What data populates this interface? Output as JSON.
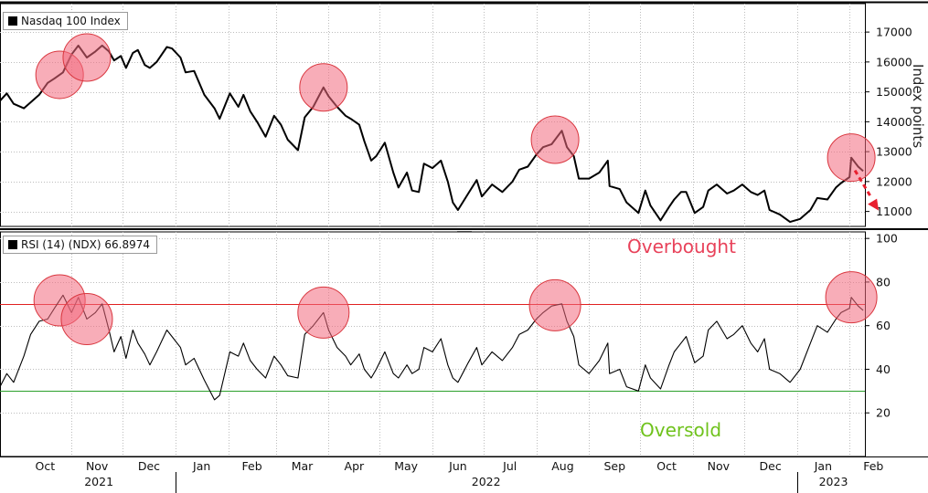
{
  "colors": {
    "price_line": "#000000",
    "rsi_line": "#000000",
    "overbought_line": "#e02020",
    "oversold_line": "#2ca02c",
    "overbought_text": "#e8425a",
    "oversold_text": "#6fc21c",
    "highlight_fill": "#f26a7e",
    "highlight_stroke": "#d9363e",
    "arrow": "#e8202f",
    "axis": "#000000"
  },
  "top_panel": {
    "legend": "Nasdaq 100 Index",
    "ylabel": "Index points"
  },
  "bottom_panel": {
    "legend": "RSI (14) (NDX) 66.8974",
    "overbought_label": "Overbought",
    "oversold_label": "Oversold"
  },
  "chart_data": [
    {
      "type": "line",
      "title": "Nasdaq 100 Index",
      "ylabel": "Index points",
      "ylim": [
        10500,
        17950
      ],
      "yticks": [
        11000,
        12000,
        13000,
        14000,
        15000,
        16000,
        17000
      ],
      "x_tick_labels": [
        "Oct",
        "Nov",
        "Dec",
        "Jan",
        "Feb",
        "Mar",
        "Apr",
        "May",
        "Jun",
        "Jul",
        "Aug",
        "Sep",
        "Oct",
        "Nov",
        "Dec",
        "Jan",
        "Feb"
      ],
      "x_year_labels": [
        "2021",
        "2022",
        "2023"
      ],
      "x_range": [
        "2021-09-20",
        "2023-02-10"
      ],
      "series": [
        {
          "values": [
            [
              "2021-09-20",
              14700
            ],
            [
              "2021-09-24",
              14950
            ],
            [
              "2021-09-28",
              14600
            ],
            [
              "2021-10-04",
              14450
            ],
            [
              "2021-10-08",
              14650
            ],
            [
              "2021-10-13",
              14900
            ],
            [
              "2021-10-18",
              15300
            ],
            [
              "2021-10-22",
              15450
            ],
            [
              "2021-10-27",
              15650
            ],
            [
              "2021-11-01",
              16250
            ],
            [
              "2021-11-05",
              16550
            ],
            [
              "2021-11-10",
              16150
            ],
            [
              "2021-11-15",
              16350
            ],
            [
              "2021-11-19",
              16550
            ],
            [
              "2021-11-23",
              16350
            ],
            [
              "2021-11-26",
              16050
            ],
            [
              "2021-11-30",
              16200
            ],
            [
              "2021-12-03",
              15800
            ],
            [
              "2021-12-07",
              16300
            ],
            [
              "2021-12-10",
              16400
            ],
            [
              "2021-12-14",
              15900
            ],
            [
              "2021-12-17",
              15800
            ],
            [
              "2021-12-21",
              16000
            ],
            [
              "2021-12-27",
              16500
            ],
            [
              "2021-12-30",
              16450
            ],
            [
              "2022-01-04",
              16150
            ],
            [
              "2022-01-07",
              15650
            ],
            [
              "2022-01-12",
              15700
            ],
            [
              "2022-01-18",
              14900
            ],
            [
              "2022-01-24",
              14450
            ],
            [
              "2022-01-27",
              14100
            ],
            [
              "2022-02-02",
              14950
            ],
            [
              "2022-02-07",
              14500
            ],
            [
              "2022-02-10",
              14900
            ],
            [
              "2022-02-14",
              14350
            ],
            [
              "2022-02-18",
              14000
            ],
            [
              "2022-02-23",
              13500
            ],
            [
              "2022-02-28",
              14200
            ],
            [
              "2022-03-04",
              13900
            ],
            [
              "2022-03-08",
              13400
            ],
            [
              "2022-03-14",
              13050
            ],
            [
              "2022-03-18",
              14150
            ],
            [
              "2022-03-23",
              14500
            ],
            [
              "2022-03-29",
              15150
            ],
            [
              "2022-04-01",
              14850
            ],
            [
              "2022-04-06",
              14500
            ],
            [
              "2022-04-11",
              14200
            ],
            [
              "2022-04-14",
              14100
            ],
            [
              "2022-04-19",
              13900
            ],
            [
              "2022-04-22",
              13350
            ],
            [
              "2022-04-26",
              12700
            ],
            [
              "2022-04-29",
              12850
            ],
            [
              "2022-05-04",
              13300
            ],
            [
              "2022-05-09",
              12300
            ],
            [
              "2022-05-12",
              11800
            ],
            [
              "2022-05-17",
              12300
            ],
            [
              "2022-05-20",
              11700
            ],
            [
              "2022-05-24",
              11650
            ],
            [
              "2022-05-27",
              12600
            ],
            [
              "2022-06-01",
              12450
            ],
            [
              "2022-06-06",
              12700
            ],
            [
              "2022-06-10",
              12000
            ],
            [
              "2022-06-13",
              11300
            ],
            [
              "2022-06-16",
              11050
            ],
            [
              "2022-06-22",
              11600
            ],
            [
              "2022-06-27",
              12050
            ],
            [
              "2022-06-30",
              11500
            ],
            [
              "2022-07-06",
              11900
            ],
            [
              "2022-07-12",
              11650
            ],
            [
              "2022-07-18",
              12000
            ],
            [
              "2022-07-22",
              12400
            ],
            [
              "2022-07-27",
              12500
            ],
            [
              "2022-08-01",
              12900
            ],
            [
              "2022-08-05",
              13150
            ],
            [
              "2022-08-10",
              13250
            ],
            [
              "2022-08-16",
              13700
            ],
            [
              "2022-08-19",
              13150
            ],
            [
              "2022-08-23",
              12850
            ],
            [
              "2022-08-26",
              12100
            ],
            [
              "2022-09-01",
              12100
            ],
            [
              "2022-09-07",
              12300
            ],
            [
              "2022-09-12",
              12700
            ],
            [
              "2022-09-13",
              11850
            ],
            [
              "2022-09-19",
              11750
            ],
            [
              "2022-09-23",
              11300
            ],
            [
              "2022-09-30",
              10950
            ],
            [
              "2022-10-04",
              11700
            ],
            [
              "2022-10-07",
              11200
            ],
            [
              "2022-10-13",
              10700
            ],
            [
              "2022-10-18",
              11150
            ],
            [
              "2022-10-21",
              11400
            ],
            [
              "2022-10-25",
              11650
            ],
            [
              "2022-10-28",
              11650
            ],
            [
              "2022-11-02",
              10950
            ],
            [
              "2022-11-07",
              11150
            ],
            [
              "2022-11-10",
              11700
            ],
            [
              "2022-11-15",
              11900
            ],
            [
              "2022-11-21",
              11600
            ],
            [
              "2022-11-25",
              11700
            ],
            [
              "2022-11-30",
              11900
            ],
            [
              "2022-12-05",
              11650
            ],
            [
              "2022-12-09",
              11550
            ],
            [
              "2022-12-13",
              11700
            ],
            [
              "2022-12-16",
              11050
            ],
            [
              "2022-12-22",
              10900
            ],
            [
              "2022-12-28",
              10650
            ],
            [
              "2023-01-03",
              10750
            ],
            [
              "2023-01-09",
              11050
            ],
            [
              "2023-01-13",
              11450
            ],
            [
              "2023-01-19",
              11400
            ],
            [
              "2023-01-24",
              11800
            ],
            [
              "2023-01-27",
              11950
            ],
            [
              "2023-02-01",
              12150
            ],
            [
              "2023-02-02",
              12800
            ],
            [
              "2023-02-06",
              12500
            ],
            [
              "2023-02-09",
              12350
            ]
          ]
        }
      ],
      "highlights": [
        "2021-10-25",
        "2021-11-10",
        "2022-03-29",
        "2022-08-12",
        "2023-02-02"
      ]
    },
    {
      "type": "line",
      "title": "RSI (14) (NDX) 66.8974",
      "ylim": [
        0,
        103
      ],
      "yticks": [
        20,
        40,
        60,
        80,
        100
      ],
      "reference_lines": [
        {
          "label": "Overbought",
          "value": 70
        },
        {
          "label": "Oversold",
          "value": 30
        }
      ],
      "series": [
        {
          "values": [
            [
              "2021-09-20",
              32
            ],
            [
              "2021-09-24",
              38
            ],
            [
              "2021-09-28",
              34
            ],
            [
              "2021-10-04",
              46
            ],
            [
              "2021-10-08",
              56
            ],
            [
              "2021-10-13",
              62
            ],
            [
              "2021-10-18",
              63
            ],
            [
              "2021-10-22",
              68
            ],
            [
              "2021-10-27",
              74
            ],
            [
              "2021-11-01",
              66
            ],
            [
              "2021-11-05",
              73
            ],
            [
              "2021-11-10",
              63
            ],
            [
              "2021-11-15",
              66
            ],
            [
              "2021-11-19",
              70
            ],
            [
              "2021-11-23",
              58
            ],
            [
              "2021-11-26",
              48
            ],
            [
              "2021-11-30",
              55
            ],
            [
              "2021-12-03",
              45
            ],
            [
              "2021-12-07",
              58
            ],
            [
              "2021-12-10",
              52
            ],
            [
              "2021-12-14",
              47
            ],
            [
              "2021-12-17",
              42
            ],
            [
              "2021-12-21",
              48
            ],
            [
              "2021-12-27",
              58
            ],
            [
              "2021-12-30",
              55
            ],
            [
              "2022-01-04",
              50
            ],
            [
              "2022-01-07",
              42
            ],
            [
              "2022-01-12",
              45
            ],
            [
              "2022-01-18",
              35
            ],
            [
              "2022-01-24",
              26
            ],
            [
              "2022-01-27",
              28
            ],
            [
              "2022-02-02",
              48
            ],
            [
              "2022-02-07",
              46
            ],
            [
              "2022-02-10",
              52
            ],
            [
              "2022-02-14",
              44
            ],
            [
              "2022-02-18",
              40
            ],
            [
              "2022-02-23",
              36
            ],
            [
              "2022-02-28",
              46
            ],
            [
              "2022-03-04",
              42
            ],
            [
              "2022-03-08",
              37
            ],
            [
              "2022-03-14",
              36
            ],
            [
              "2022-03-18",
              56
            ],
            [
              "2022-03-23",
              60
            ],
            [
              "2022-03-29",
              66
            ],
            [
              "2022-04-01",
              58
            ],
            [
              "2022-04-06",
              50
            ],
            [
              "2022-04-11",
              46
            ],
            [
              "2022-04-14",
              42
            ],
            [
              "2022-04-19",
              47
            ],
            [
              "2022-04-22",
              40
            ],
            [
              "2022-04-26",
              36
            ],
            [
              "2022-04-29",
              40
            ],
            [
              "2022-05-04",
              48
            ],
            [
              "2022-05-09",
              38
            ],
            [
              "2022-05-12",
              36
            ],
            [
              "2022-05-17",
              42
            ],
            [
              "2022-05-20",
              38
            ],
            [
              "2022-05-24",
              40
            ],
            [
              "2022-05-27",
              50
            ],
            [
              "2022-06-01",
              48
            ],
            [
              "2022-06-06",
              54
            ],
            [
              "2022-06-10",
              42
            ],
            [
              "2022-06-13",
              36
            ],
            [
              "2022-06-16",
              34
            ],
            [
              "2022-06-22",
              43
            ],
            [
              "2022-06-27",
              50
            ],
            [
              "2022-06-30",
              42
            ],
            [
              "2022-07-06",
              48
            ],
            [
              "2022-07-12",
              44
            ],
            [
              "2022-07-18",
              50
            ],
            [
              "2022-07-22",
              56
            ],
            [
              "2022-07-27",
              58
            ],
            [
              "2022-08-01",
              63
            ],
            [
              "2022-08-05",
              66
            ],
            [
              "2022-08-10",
              69
            ],
            [
              "2022-08-16",
              70
            ],
            [
              "2022-08-19",
              62
            ],
            [
              "2022-08-23",
              55
            ],
            [
              "2022-08-26",
              42
            ],
            [
              "2022-09-01",
              38
            ],
            [
              "2022-09-07",
              44
            ],
            [
              "2022-09-12",
              52
            ],
            [
              "2022-09-13",
              38
            ],
            [
              "2022-09-19",
              40
            ],
            [
              "2022-09-23",
              32
            ],
            [
              "2022-09-30",
              30
            ],
            [
              "2022-10-04",
              42
            ],
            [
              "2022-10-07",
              36
            ],
            [
              "2022-10-13",
              31
            ],
            [
              "2022-10-18",
              42
            ],
            [
              "2022-10-21",
              48
            ],
            [
              "2022-10-25",
              52
            ],
            [
              "2022-10-28",
              55
            ],
            [
              "2022-11-02",
              43
            ],
            [
              "2022-11-07",
              46
            ],
            [
              "2022-11-10",
              58
            ],
            [
              "2022-11-15",
              62
            ],
            [
              "2022-11-21",
              54
            ],
            [
              "2022-11-25",
              56
            ],
            [
              "2022-11-30",
              60
            ],
            [
              "2022-12-05",
              52
            ],
            [
              "2022-12-09",
              48
            ],
            [
              "2022-12-13",
              54
            ],
            [
              "2022-12-16",
              40
            ],
            [
              "2022-12-22",
              38
            ],
            [
              "2022-12-28",
              34
            ],
            [
              "2023-01-03",
              40
            ],
            [
              "2023-01-09",
              52
            ],
            [
              "2023-01-13",
              60
            ],
            [
              "2023-01-19",
              57
            ],
            [
              "2023-01-24",
              63
            ],
            [
              "2023-01-27",
              66
            ],
            [
              "2023-02-01",
              68
            ],
            [
              "2023-02-02",
              73
            ],
            [
              "2023-02-06",
              69
            ],
            [
              "2023-02-09",
              67
            ]
          ]
        }
      ],
      "highlights": [
        "2021-10-25",
        "2021-11-10",
        "2022-03-29",
        "2022-08-12",
        "2023-02-02"
      ]
    }
  ]
}
